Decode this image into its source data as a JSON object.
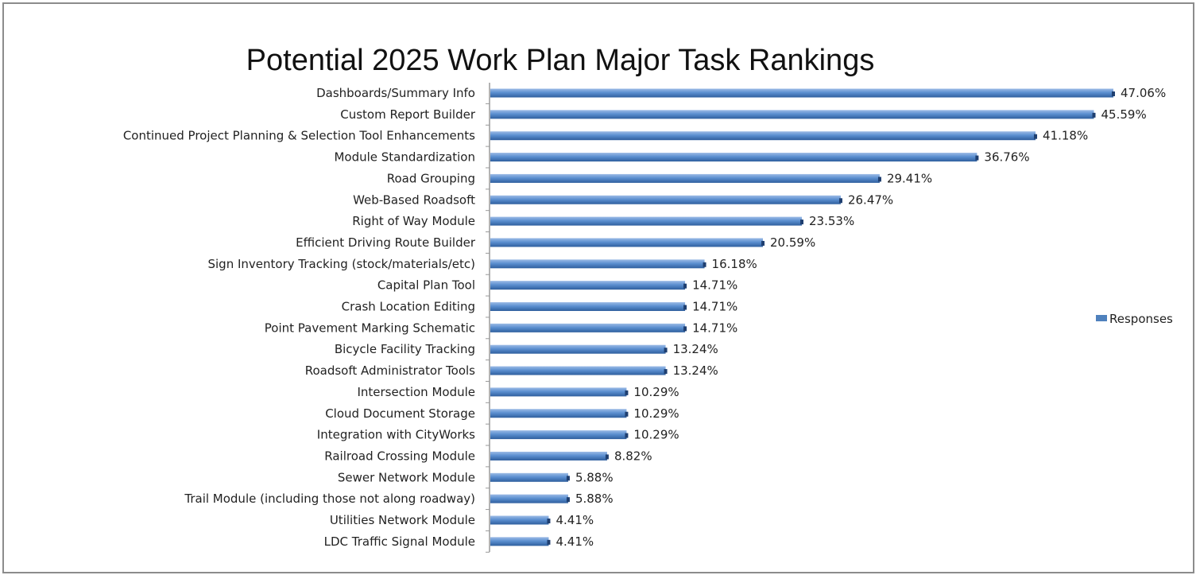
{
  "chart_data": {
    "type": "bar",
    "orientation": "horizontal",
    "title": "Potential 2025 Work Plan Major Task Rankings",
    "categories": [
      "Dashboards/Summary Info",
      "Custom Report Builder",
      "Continued Project Planning & Selection Tool Enhancements",
      "Module Standardization",
      "Road Grouping",
      "Web-Based Roadsoft",
      "Right of Way Module",
      "Efficient Driving Route Builder",
      "Sign Inventory Tracking (stock/materials/etc)",
      "Capital Plan Tool",
      "Crash Location Editing",
      "Point Pavement Marking Schematic",
      "Bicycle Facility Tracking",
      "Roadsoft Administrator Tools",
      "Intersection Module",
      "Cloud Document Storage",
      "Integration with CityWorks",
      "Railroad Crossing Module",
      "Sewer Network Module",
      "Trail Module (including those not along roadway)",
      "Utilities Network Module",
      "LDC Traffic Signal Module"
    ],
    "series": [
      {
        "name": "Responses",
        "color": "#4f81bd",
        "values": [
          47.06,
          45.59,
          41.18,
          36.76,
          29.41,
          26.47,
          23.53,
          20.59,
          16.18,
          14.71,
          14.71,
          14.71,
          13.24,
          13.24,
          10.29,
          10.29,
          10.29,
          8.82,
          5.88,
          5.88,
          4.41,
          4.41
        ],
        "value_labels": [
          "47.06%",
          "45.59%",
          "41.18%",
          "36.76%",
          "29.41%",
          "26.47%",
          "23.53%",
          "20.59%",
          "16.18%",
          "14.71%",
          "14.71%",
          "14.71%",
          "13.24%",
          "13.24%",
          "10.29%",
          "10.29%",
          "10.29%",
          "8.82%",
          "5.88%",
          "5.88%",
          "4.41%",
          "4.41%"
        ]
      }
    ],
    "xlim": [
      0,
      47.06
    ],
    "grid": false,
    "legend": "right"
  }
}
